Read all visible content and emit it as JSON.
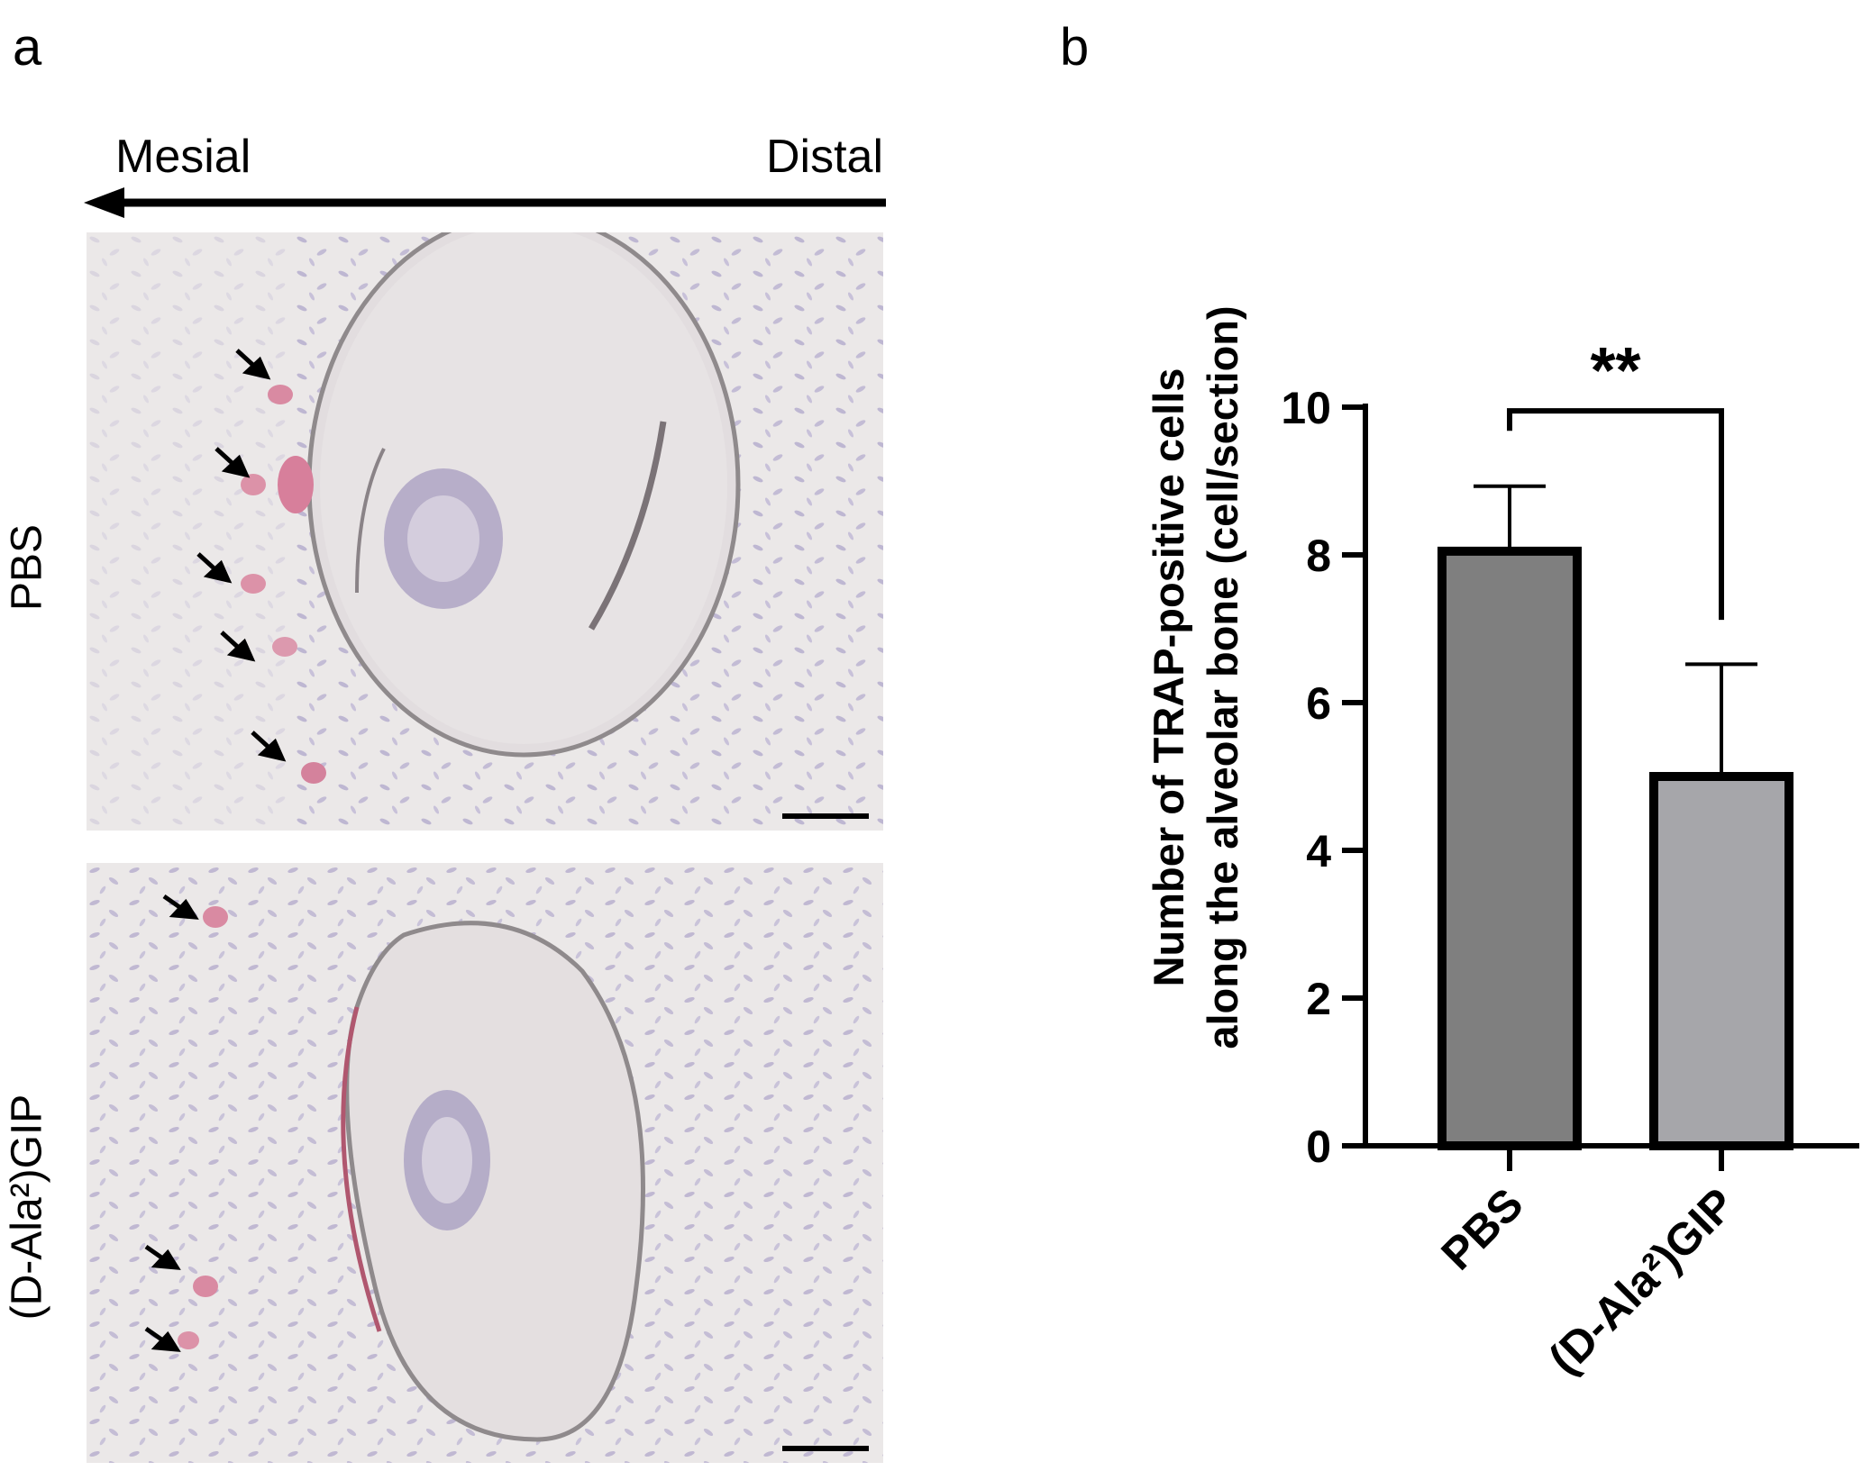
{
  "panel_a": {
    "letter": "a",
    "direction": {
      "left": "Mesial",
      "right": "Distal"
    },
    "rows": [
      {
        "label": "PBS"
      },
      {
        "label": "(D-Ala²)GIP"
      }
    ]
  },
  "panel_b": {
    "letter": "b"
  },
  "chart_data": {
    "type": "bar",
    "categories": [
      "PBS",
      "(D-Ala²)GIP"
    ],
    "values": [
      8.05,
      5.0
    ],
    "error_upper": [
      0.88,
      1.52
    ],
    "ylabel": "Number of TRAP-positive cells along the alveolar bone (cell/section)",
    "ylabel_lines": [
      "Number of TRAP-positive cells",
      "along the alveolar bone (cell/section)"
    ],
    "ylim": [
      0,
      10
    ],
    "yticks": [
      0,
      2,
      4,
      6,
      8,
      10
    ],
    "bar_colors": [
      "#7f7f7f",
      "#a6a6aa"
    ],
    "significance": "**",
    "grid": false
  }
}
